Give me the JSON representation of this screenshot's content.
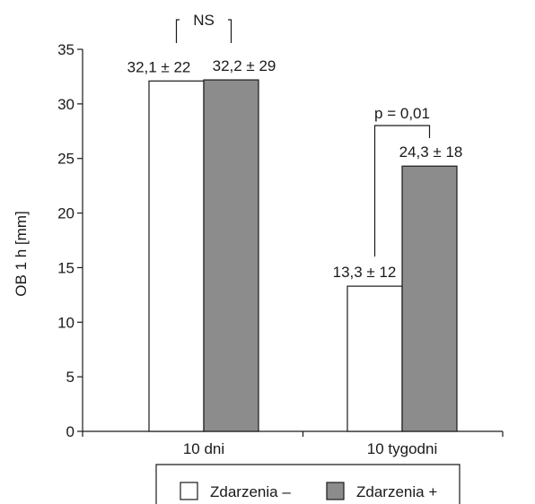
{
  "chart_data": {
    "type": "bar",
    "categories": [
      "10 dni",
      "10 tygodni"
    ],
    "series": [
      {
        "name": "Zdarzenia –",
        "values": [
          32.1,
          13.3
        ],
        "labels": [
          "32,1 ± 22",
          "13,3 ± 12"
        ],
        "color": "#ffffff"
      },
      {
        "name": "Zdarzenia +",
        "values": [
          32.2,
          24.3
        ],
        "labels": [
          "32,2 ± 29",
          "24,3 ± 18"
        ],
        "color": "#8c8c8c"
      }
    ],
    "ylabel": "OB 1 h [mm]",
    "ylim": [
      0,
      35
    ],
    "yticks": [
      0,
      5,
      10,
      15,
      20,
      25,
      30,
      35
    ],
    "annotations": [
      {
        "text": "NS",
        "category": 0
      },
      {
        "text": "p = 0,01",
        "category": 1
      }
    ],
    "legend_position": "bottom",
    "grid": false
  }
}
